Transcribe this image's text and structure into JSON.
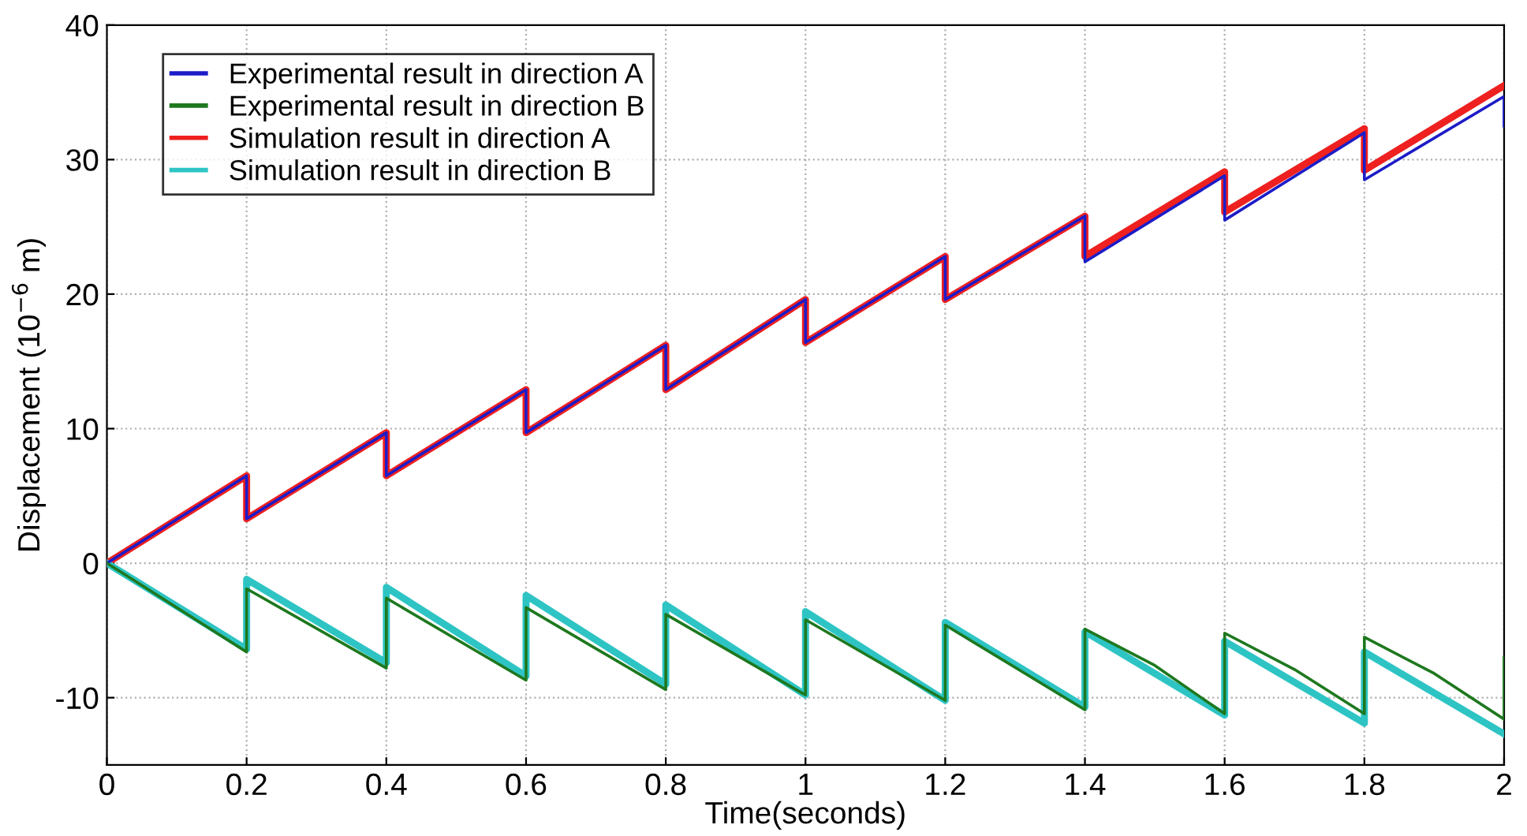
{
  "chart_data": {
    "type": "line",
    "xlabel": "Time(seconds)",
    "ylabel": "Displacement (10$^{−6}$ m)",
    "xlim": [
      0,
      2
    ],
    "xticks": [
      0,
      0.2,
      0.4,
      0.6,
      0.8,
      1,
      1.2,
      1.4,
      1.6,
      1.8,
      2
    ],
    "ylim": [
      -15,
      40
    ],
    "yticks": [
      -10,
      0,
      10,
      20,
      30,
      40
    ],
    "grid": true,
    "legend": "top left",
    "line_style": "solid",
    "series": [
      {
        "name": "Experimental result in direction A",
        "color": "#1c1cc8",
        "x": [
          0,
          0.2,
          0.2,
          0.4,
          0.4,
          0.6,
          0.6,
          0.8,
          0.8,
          1.0,
          1.0,
          1.2,
          1.2,
          1.4,
          1.4,
          1.6,
          1.6,
          1.8,
          1.8,
          2.0,
          2.0
        ],
        "values": [
          0,
          6.5,
          3.3,
          9.7,
          6.5,
          12.9,
          9.7,
          16.2,
          12.9,
          19.6,
          16.4,
          22.8,
          19.6,
          25.8,
          22.4,
          28.8,
          25.5,
          32.0,
          28.5,
          34.7,
          32.5
        ]
      },
      {
        "name": "Experimental result in direction B",
        "color": "#1e781e",
        "x": [
          0,
          0.2,
          0.2,
          0.4,
          0.4,
          0.6,
          0.6,
          0.8,
          0.8,
          1.0,
          1.0,
          1.2,
          1.2,
          1.4,
          1.4,
          1.5,
          1.6,
          1.6,
          1.7,
          1.8,
          1.8,
          1.9,
          2.0,
          2.0
        ],
        "values": [
          0,
          -6.6,
          -1.9,
          -7.8,
          -2.6,
          -8.7,
          -3.3,
          -9.4,
          -3.8,
          -9.8,
          -4.2,
          -10.2,
          -4.6,
          -10.9,
          -4.9,
          -7.6,
          -11.2,
          -5.2,
          -7.9,
          -11.2,
          -5.5,
          -8.2,
          -11.6,
          -7.0
        ]
      },
      {
        "name": "Simulation result in direction A",
        "color": "#ee2020",
        "x": [
          0,
          0.2,
          0.2,
          0.4,
          0.4,
          0.6,
          0.6,
          0.8,
          0.8,
          1.0,
          1.0,
          1.2,
          1.2,
          1.4,
          1.4,
          1.6,
          1.6,
          1.8,
          1.8,
          2.0
        ],
        "values": [
          0,
          6.5,
          3.3,
          9.7,
          6.5,
          12.9,
          9.7,
          16.2,
          12.9,
          19.6,
          16.4,
          22.8,
          19.6,
          25.8,
          22.8,
          29.1,
          26.1,
          32.3,
          29.2,
          35.5
        ]
      },
      {
        "name": "Simulation result in direction B",
        "color": "#2ec4c4",
        "x": [
          0,
          0.2,
          0.2,
          0.4,
          0.4,
          0.6,
          0.6,
          0.8,
          0.8,
          1.0,
          1.0,
          1.2,
          1.2,
          1.4,
          1.4,
          1.6,
          1.6,
          1.8,
          1.8,
          2.0
        ],
        "values": [
          0,
          -6.4,
          -1.2,
          -7.4,
          -1.8,
          -8.4,
          -2.4,
          -9.0,
          -3.1,
          -9.8,
          -3.6,
          -10.2,
          -4.4,
          -10.7,
          -5.1,
          -11.3,
          -5.8,
          -11.9,
          -6.6,
          -12.7
        ]
      }
    ]
  }
}
